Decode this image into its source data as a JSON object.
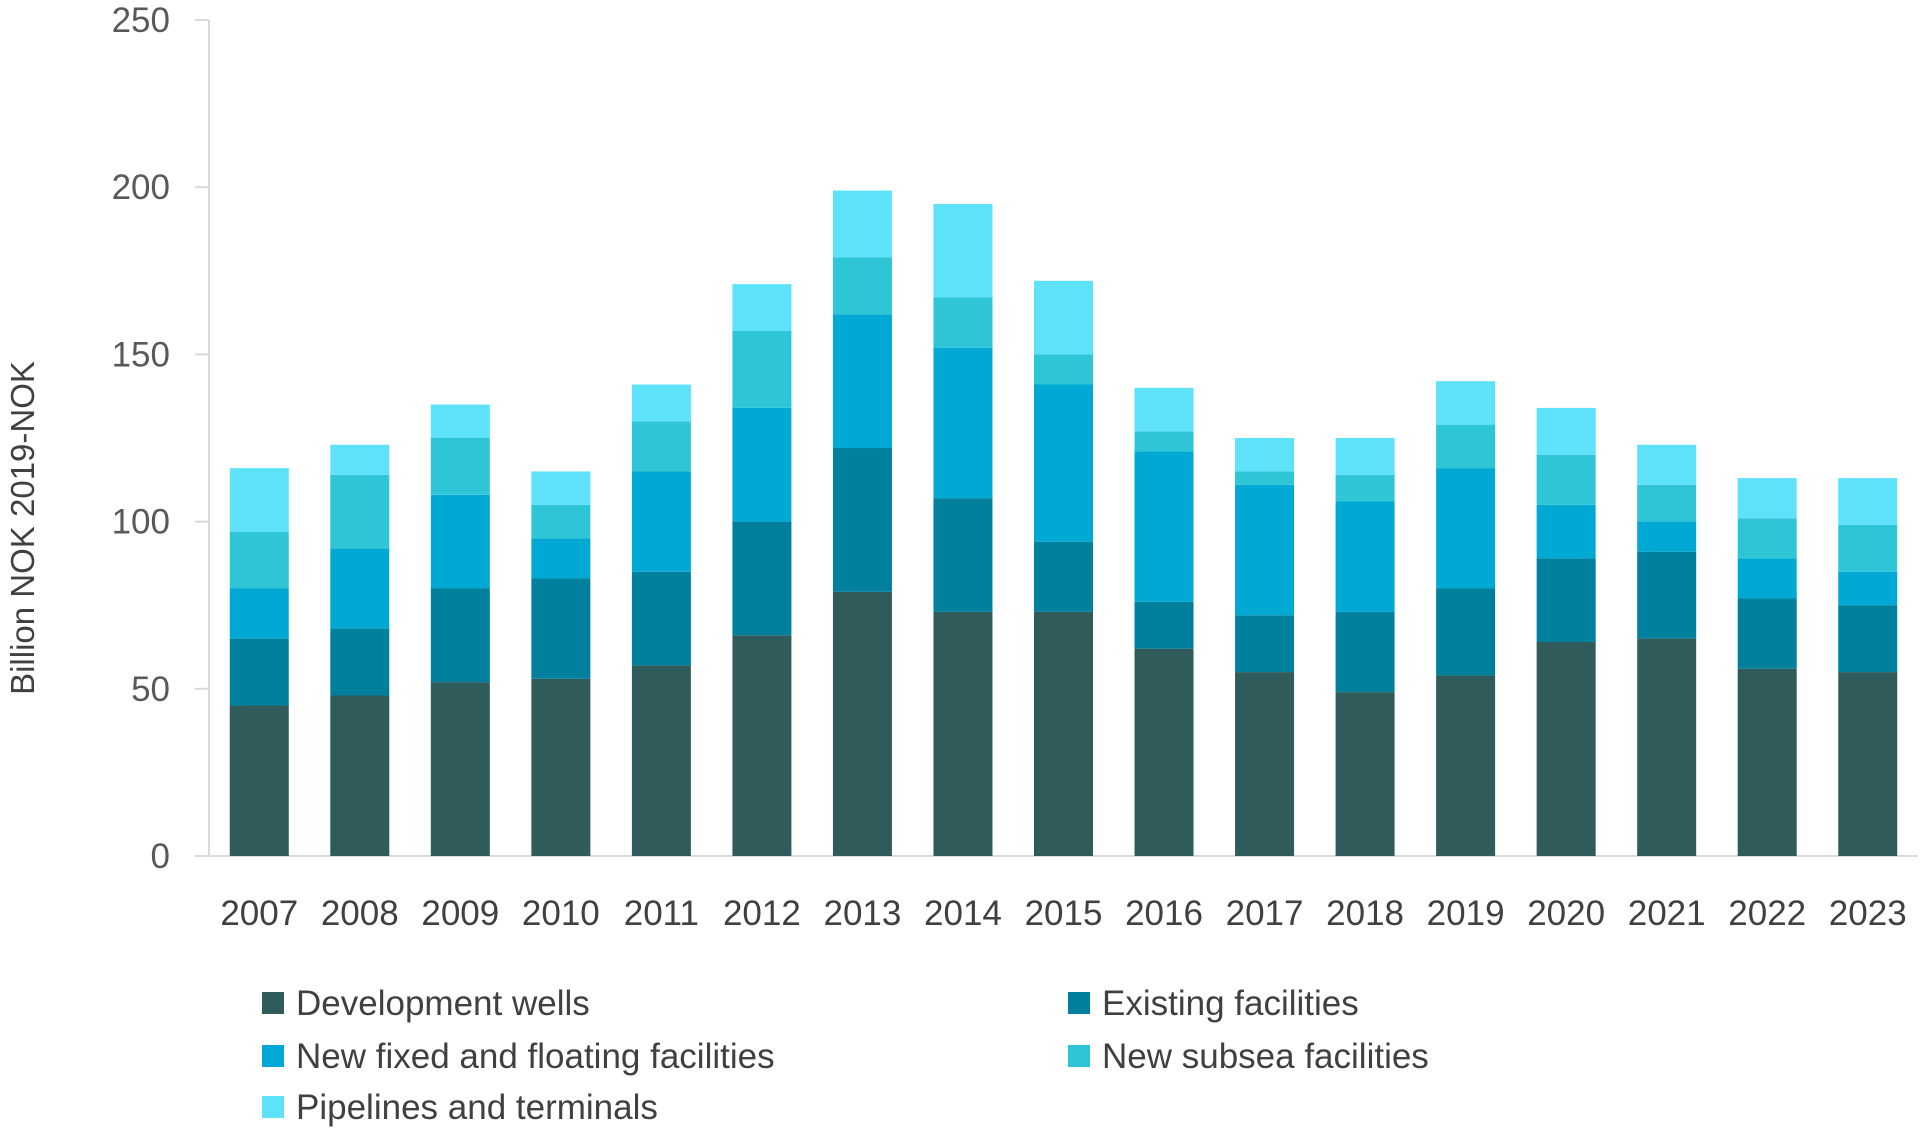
{
  "chart_data": {
    "type": "bar",
    "stacked": true,
    "title": "",
    "xlabel": "",
    "ylabel": "Billion NOK 2019-NOK",
    "ylim": [
      0,
      250
    ],
    "yticks": [
      0,
      50,
      100,
      150,
      200,
      250
    ],
    "grid": false,
    "legend_position": "bottom",
    "categories": [
      "2007",
      "2008",
      "2009",
      "2010",
      "2011",
      "2012",
      "2013",
      "2014",
      "2015",
      "2016",
      "2017",
      "2018",
      "2019",
      "2020",
      "2021",
      "2022",
      "2023"
    ],
    "series": [
      {
        "name": "Development wells",
        "color": "#2F5C5A",
        "values": [
          45,
          48,
          52,
          53,
          57,
          66,
          79,
          73,
          73,
          62,
          55,
          49,
          54,
          64,
          65,
          56,
          55
        ]
      },
      {
        "name": "Existing facilities",
        "color": "#00809D",
        "values": [
          20,
          20,
          28,
          30,
          28,
          34,
          43,
          34,
          21,
          14,
          17,
          24,
          26,
          25,
          26,
          21,
          20
        ]
      },
      {
        "name": "New fixed and floating facilities",
        "color": "#00A9D4",
        "values": [
          15,
          24,
          28,
          12,
          30,
          34,
          40,
          45,
          47,
          45,
          39,
          33,
          36,
          16,
          9,
          12,
          10
        ]
      },
      {
        "name": "New subsea facilities",
        "color": "#2EC6D6",
        "values": [
          17,
          22,
          17,
          10,
          15,
          23,
          17,
          15,
          9,
          6,
          4,
          8,
          13,
          15,
          11,
          12,
          14
        ]
      },
      {
        "name": "Pipelines and terminals",
        "color": "#5DE2FA",
        "values": [
          19,
          9,
          10,
          10,
          11,
          14,
          20,
          28,
          22,
          13,
          10,
          11,
          13,
          14,
          12,
          12,
          14
        ]
      }
    ]
  }
}
